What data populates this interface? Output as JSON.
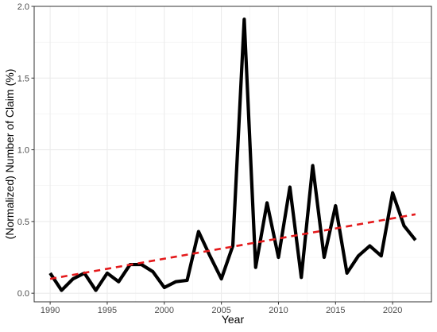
{
  "chart_data": {
    "type": "line",
    "xlabel": "Year",
    "ylabel": "(Normalized) Number of Claim (%)",
    "xlim": [
      1988.6,
      2023.4
    ],
    "ylim": [
      -0.06,
      2.0
    ],
    "xticks": [
      1990,
      1995,
      2000,
      2005,
      2010,
      2015,
      2020
    ],
    "yticks": [
      0.0,
      0.5,
      1.0,
      1.5,
      2.0
    ],
    "ytick_labels": [
      "0.0",
      "0.5",
      "1.0",
      "1.5",
      "2.0"
    ],
    "grid": true,
    "series": [
      {
        "style": "solid",
        "color": "#000000",
        "x": [
          1990,
          1991,
          1992,
          1993,
          1994,
          1995,
          1996,
          1997,
          1998,
          1999,
          2000,
          2001,
          2002,
          2003,
          2004,
          2005,
          2006,
          2007,
          2008,
          2009,
          2010,
          2011,
          2012,
          2013,
          2014,
          2015,
          2016,
          2017,
          2018,
          2019,
          2020,
          2021,
          2022
        ],
        "y": [
          0.14,
          0.02,
          0.1,
          0.14,
          0.02,
          0.14,
          0.08,
          0.2,
          0.2,
          0.15,
          0.04,
          0.08,
          0.09,
          0.43,
          0.26,
          0.1,
          0.33,
          1.91,
          0.18,
          0.63,
          0.25,
          0.74,
          0.11,
          0.89,
          0.25,
          0.61,
          0.14,
          0.26,
          0.33,
          0.26,
          0.7,
          0.47,
          0.37
        ]
      },
      {
        "style": "dashed",
        "color": "#e41a1c",
        "x": [
          1990,
          2022
        ],
        "y": [
          0.1,
          0.55
        ]
      }
    ]
  }
}
